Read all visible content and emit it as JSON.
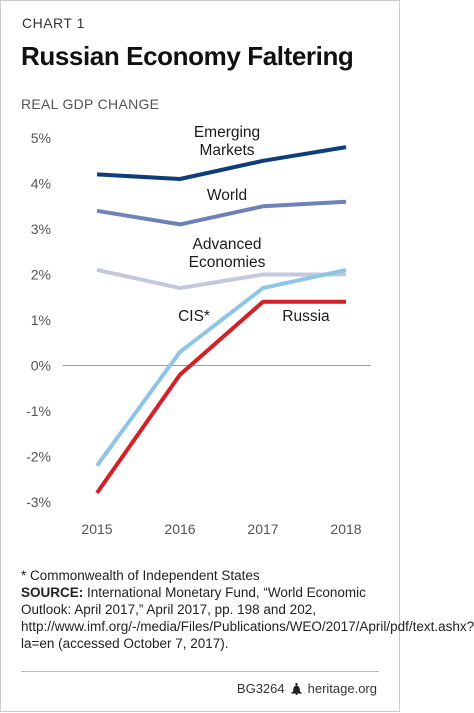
{
  "header": {
    "chart_label": "CHART 1",
    "title": "Russian Economy Faltering",
    "subtitle": "REAL GDP CHANGE"
  },
  "chart_data": {
    "type": "line",
    "x": [
      "2015",
      "2016",
      "2017",
      "2018"
    ],
    "ylim": [
      -3,
      5
    ],
    "yticks": [
      {
        "value": 5,
        "label": "5%"
      },
      {
        "value": 4,
        "label": "4%"
      },
      {
        "value": 3,
        "label": "3%"
      },
      {
        "value": 2,
        "label": "2%"
      },
      {
        "value": 1,
        "label": "1%"
      },
      {
        "value": 0,
        "label": "0%"
      },
      {
        "value": -1,
        "label": "-1%"
      },
      {
        "value": -2,
        "label": "-2%"
      },
      {
        "value": -3,
        "label": "-3%"
      }
    ],
    "grid": false,
    "series": [
      {
        "name": "Emerging Markets",
        "label_lines": [
          "Emerging",
          "Markets"
        ],
        "color": "#0d3d7a",
        "values": [
          4.2,
          4.1,
          4.5,
          4.8
        ]
      },
      {
        "name": "World",
        "label_lines": [
          "World"
        ],
        "color": "#6e82b8",
        "values": [
          3.4,
          3.1,
          3.5,
          3.6
        ]
      },
      {
        "name": "Advanced Economies",
        "label_lines": [
          "Advanced",
          "Economies"
        ],
        "color": "#c3c8dc",
        "values": [
          2.1,
          1.7,
          2.0,
          2.0
        ]
      },
      {
        "name": "CIS*",
        "label_lines": [
          "CIS*"
        ],
        "color": "#8ec5e6",
        "values": [
          -2.2,
          0.3,
          1.7,
          2.1
        ]
      },
      {
        "name": "Russia",
        "label_lines": [
          "Russia"
        ],
        "color": "#d42027",
        "values": [
          -2.8,
          -0.2,
          1.4,
          1.4
        ]
      }
    ]
  },
  "footer": {
    "footnote": "* Commonwealth of Independent States",
    "source_label": "SOURCE:",
    "source_text": "International Monetary Fund, “World Economic Outlook: April 2017,” April 2017, pp. 198 and 202, http://www.imf.org/-/media/Files/Publications/WEO/2017/April/pdf/text.ashx?la=en (accessed October 7, 2017).",
    "chart_id": "BG3264",
    "brand": "heritage.org",
    "icon": "liberty-bell-icon"
  }
}
